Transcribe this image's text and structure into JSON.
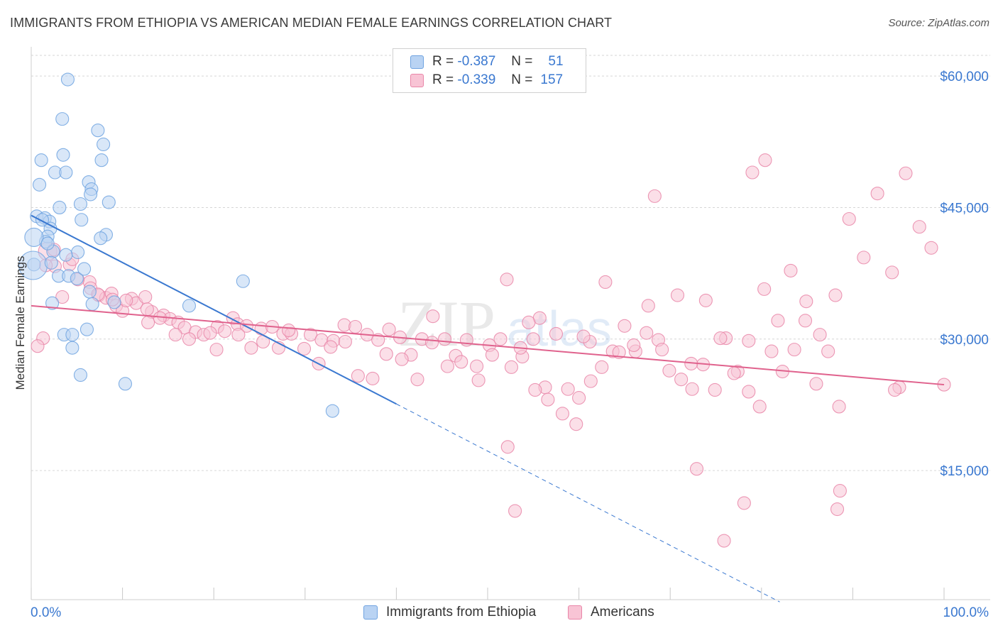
{
  "title": "IMMIGRANTS FROM ETHIOPIA VS AMERICAN MEDIAN FEMALE EARNINGS CORRELATION CHART",
  "source": "Source: ZipAtlas.com",
  "watermark": {
    "zip": "ZIP",
    "atlas": "atlas"
  },
  "legend": {
    "rows": [
      {
        "r_label": "R =",
        "r_value": "-0.387",
        "n_label": "N =",
        "n_value": "51",
        "color": "#6fa3e0",
        "fill": "#b9d3f3"
      },
      {
        "r_label": "R =",
        "r_value": "-0.339",
        "n_label": "N =",
        "n_value": "157",
        "color": "#e986a8",
        "fill": "#f8c4d5"
      }
    ]
  },
  "bottom_legend": [
    {
      "label": "Immigrants from Ethiopia",
      "color": "#6fa3e0",
      "fill": "#b9d3f3"
    },
    {
      "label": "Americans",
      "color": "#e986a8",
      "fill": "#f8c4d5"
    }
  ],
  "chart_data": {
    "type": "scatter",
    "title": "IMMIGRANTS FROM ETHIOPIA VS AMERICAN MEDIAN FEMALE EARNINGS CORRELATION CHART",
    "xlabel": "",
    "ylabel": "Median Female Earnings",
    "xlim": [
      0,
      100
    ],
    "ylim": [
      1500,
      63000
    ],
    "x_tick_labels": [
      "0.0%",
      "100.0%"
    ],
    "y_ticks": [
      15000,
      30000,
      45000,
      60000
    ],
    "y_tick_labels": [
      "$15,000",
      "$30,000",
      "$45,000",
      "$60,000"
    ],
    "grid": true,
    "legend_position": "top-center",
    "series": [
      {
        "name": "Immigrants from Ethiopia",
        "color": "#6fa3e0",
        "fill": "#b9d3f3",
        "trend": {
          "x0": 0,
          "y0": 44100,
          "x1": 40,
          "y1": 22600,
          "dashed_to_x": 82
        },
        "points": [
          [
            4.0,
            59600
          ],
          [
            3.4,
            55100
          ],
          [
            7.3,
            53800
          ],
          [
            7.9,
            52200
          ],
          [
            3.5,
            51000
          ],
          [
            1.1,
            50400
          ],
          [
            7.7,
            50400
          ],
          [
            2.6,
            49000
          ],
          [
            3.8,
            49000
          ],
          [
            6.3,
            47900
          ],
          [
            0.9,
            47600
          ],
          [
            6.6,
            47100
          ],
          [
            6.5,
            46500
          ],
          [
            5.4,
            45400
          ],
          [
            8.5,
            45600
          ],
          [
            3.1,
            45000
          ],
          [
            0.6,
            44000
          ],
          [
            1.5,
            43800
          ],
          [
            5.5,
            43600
          ],
          [
            2.0,
            43400
          ],
          [
            2.1,
            42600
          ],
          [
            8.2,
            41900
          ],
          [
            1.8,
            41700
          ],
          [
            7.6,
            41500
          ],
          [
            1.6,
            41100
          ],
          [
            0.3,
            41600
          ],
          [
            2.4,
            40000
          ],
          [
            5.1,
            39900
          ],
          [
            0.3,
            38500
          ],
          [
            3.0,
            37200
          ],
          [
            4.1,
            37200
          ],
          [
            5.0,
            36900
          ],
          [
            3.8,
            39600
          ],
          [
            23.2,
            36600
          ],
          [
            6.4,
            35400
          ],
          [
            2.3,
            34100
          ],
          [
            6.7,
            34000
          ],
          [
            9.1,
            34200
          ],
          [
            17.3,
            33800
          ],
          [
            6.1,
            31100
          ],
          [
            3.6,
            30500
          ],
          [
            4.5,
            30500
          ],
          [
            4.5,
            29000
          ],
          [
            5.4,
            25900
          ],
          [
            10.3,
            24900
          ],
          [
            33.0,
            21800
          ],
          [
            0.2,
            38400
          ],
          [
            1.2,
            43600
          ],
          [
            2.2,
            38700
          ],
          [
            5.8,
            38000
          ],
          [
            1.8,
            40900
          ]
        ]
      },
      {
        "name": "Americans",
        "color": "#e986a8",
        "fill": "#f8c4d5",
        "trend": {
          "x0": 0,
          "y0": 33800,
          "x1": 100,
          "y1": 24800
        },
        "points": [
          [
            1.8,
            40000
          ],
          [
            2.5,
            40200
          ],
          [
            4.2,
            38500
          ],
          [
            2.6,
            38300
          ],
          [
            4.5,
            39100
          ],
          [
            6.4,
            36500
          ],
          [
            6.5,
            35800
          ],
          [
            7.4,
            35000
          ],
          [
            8.2,
            34700
          ],
          [
            8.8,
            35200
          ],
          [
            11.0,
            34600
          ],
          [
            11.5,
            34100
          ],
          [
            12.5,
            34800
          ],
          [
            9.3,
            33800
          ],
          [
            10.0,
            33200
          ],
          [
            13.2,
            33100
          ],
          [
            14.5,
            32700
          ],
          [
            15.2,
            32300
          ],
          [
            16.1,
            31900
          ],
          [
            12.8,
            31900
          ],
          [
            16.8,
            31300
          ],
          [
            18.0,
            30800
          ],
          [
            18.9,
            30500
          ],
          [
            20.4,
            31400
          ],
          [
            21.2,
            30900
          ],
          [
            22.1,
            32400
          ],
          [
            22.6,
            31700
          ],
          [
            23.6,
            31500
          ],
          [
            25.2,
            31200
          ],
          [
            26.4,
            31400
          ],
          [
            27.6,
            30600
          ],
          [
            28.5,
            30600
          ],
          [
            30.6,
            30500
          ],
          [
            31.8,
            29900
          ],
          [
            33.1,
            29800
          ],
          [
            34.3,
            31600
          ],
          [
            35.5,
            31400
          ],
          [
            36.8,
            30500
          ],
          [
            38.0,
            29900
          ],
          [
            39.2,
            31100
          ],
          [
            40.4,
            30200
          ],
          [
            41.6,
            28200
          ],
          [
            42.8,
            30000
          ],
          [
            44.0,
            32600
          ],
          [
            45.3,
            30000
          ],
          [
            46.5,
            28100
          ],
          [
            47.7,
            29900
          ],
          [
            49.0,
            25300
          ],
          [
            50.2,
            29300
          ],
          [
            51.4,
            30000
          ],
          [
            52.6,
            26800
          ],
          [
            53.8,
            28000
          ],
          [
            55.0,
            30000
          ],
          [
            56.3,
            24500
          ],
          [
            57.5,
            30600
          ],
          [
            58.8,
            24300
          ],
          [
            60.0,
            23300
          ],
          [
            61.2,
            29700
          ],
          [
            62.5,
            26800
          ],
          [
            63.7,
            28600
          ],
          [
            65.0,
            31500
          ],
          [
            66.2,
            28600
          ],
          [
            67.4,
            30700
          ],
          [
            68.7,
            29900
          ],
          [
            69.9,
            26400
          ],
          [
            71.2,
            25400
          ],
          [
            72.4,
            24300
          ],
          [
            73.6,
            27100
          ],
          [
            74.9,
            24200
          ],
          [
            76.1,
            30100
          ],
          [
            77.4,
            26300
          ],
          [
            78.6,
            24000
          ],
          [
            79.8,
            22300
          ],
          [
            81.1,
            28600
          ],
          [
            82.3,
            26300
          ],
          [
            83.6,
            28800
          ],
          [
            84.8,
            32100
          ],
          [
            86.0,
            24900
          ],
          [
            87.3,
            28600
          ],
          [
            88.5,
            22300
          ],
          [
            3.4,
            34800
          ],
          [
            1.3,
            30100
          ],
          [
            0.7,
            29200
          ],
          [
            1.6,
            38400
          ],
          [
            5.1,
            36800
          ],
          [
            7.3,
            35100
          ],
          [
            8.9,
            34500
          ],
          [
            10.4,
            34400
          ],
          [
            12.7,
            33400
          ],
          [
            14.1,
            32400
          ],
          [
            15.8,
            30500
          ],
          [
            17.3,
            30000
          ],
          [
            19.6,
            30700
          ],
          [
            20.3,
            28800
          ],
          [
            22.7,
            30500
          ],
          [
            24.1,
            29000
          ],
          [
            25.4,
            29700
          ],
          [
            27.1,
            29000
          ],
          [
            28.2,
            31000
          ],
          [
            29.9,
            28900
          ],
          [
            31.5,
            27200
          ],
          [
            32.8,
            29100
          ],
          [
            34.4,
            29700
          ],
          [
            35.8,
            25800
          ],
          [
            37.4,
            25500
          ],
          [
            38.9,
            28300
          ],
          [
            40.6,
            27700
          ],
          [
            42.3,
            25400
          ],
          [
            43.9,
            29600
          ],
          [
            45.6,
            26900
          ],
          [
            47.1,
            27400
          ],
          [
            48.8,
            26900
          ],
          [
            50.5,
            28200
          ],
          [
            52.1,
            36800
          ],
          [
            53.6,
            29000
          ],
          [
            55.2,
            24200
          ],
          [
            56.6,
            23100
          ],
          [
            58.2,
            21500
          ],
          [
            59.7,
            20300
          ],
          [
            61.3,
            25200
          ],
          [
            62.9,
            36500
          ],
          [
            64.4,
            28500
          ],
          [
            66.0,
            29300
          ],
          [
            67.6,
            33800
          ],
          [
            69.1,
            28800
          ],
          [
            70.8,
            35000
          ],
          [
            72.3,
            27200
          ],
          [
            73.9,
            34400
          ],
          [
            75.5,
            30100
          ],
          [
            77.0,
            26100
          ],
          [
            78.6,
            29800
          ],
          [
            80.3,
            35700
          ],
          [
            81.8,
            32100
          ],
          [
            83.2,
            37800
          ],
          [
            84.9,
            34300
          ],
          [
            86.4,
            30500
          ],
          [
            88.1,
            35000
          ],
          [
            89.6,
            43700
          ],
          [
            91.2,
            39300
          ],
          [
            92.7,
            46600
          ],
          [
            94.3,
            37600
          ],
          [
            95.8,
            48900
          ],
          [
            97.3,
            42800
          ],
          [
            98.6,
            40400
          ],
          [
            55.7,
            32400
          ],
          [
            60.5,
            30300
          ],
          [
            54.5,
            31900
          ],
          [
            72.9,
            15200
          ],
          [
            78.1,
            11300
          ],
          [
            88.3,
            10600
          ],
          [
            88.6,
            12700
          ],
          [
            75.9,
            7000
          ],
          [
            53.0,
            10400
          ],
          [
            52.2,
            17700
          ],
          [
            100.0,
            24800
          ],
          [
            95.1,
            24500
          ],
          [
            94.6,
            24200
          ],
          [
            80.4,
            50400
          ],
          [
            79.0,
            49000
          ],
          [
            68.3,
            46300
          ]
        ]
      }
    ]
  }
}
